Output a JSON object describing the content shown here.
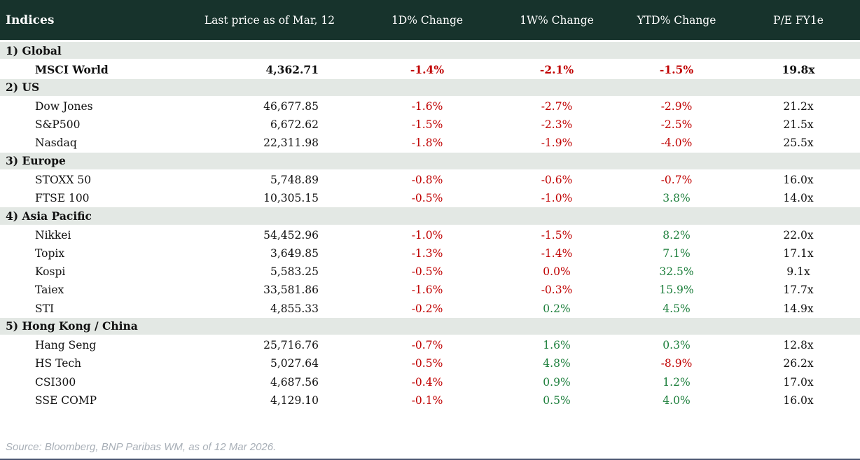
{
  "chart_data": {
    "type": "table",
    "title": "Indices",
    "columns": [
      "Last price as of Mar, 12",
      "1D% Change",
      "1W% Change",
      "YTD% Change",
      "P/E FY1e"
    ],
    "sections": [
      {
        "label": "1) Global",
        "rows": [
          {
            "name": "MSCI World",
            "price": "4,362.71",
            "d1": {
              "v": "-1.4%",
              "c": "neg"
            },
            "w1": {
              "v": "-2.1%",
              "c": "neg"
            },
            "ytd": {
              "v": "-1.5%",
              "c": "neg"
            },
            "pe": "19.8x",
            "emphasis": true
          }
        ]
      },
      {
        "label": "2) US",
        "rows": [
          {
            "name": "Dow Jones",
            "price": "46,677.85",
            "d1": {
              "v": "-1.6%",
              "c": "neg"
            },
            "w1": {
              "v": "-2.7%",
              "c": "neg"
            },
            "ytd": {
              "v": "-2.9%",
              "c": "neg"
            },
            "pe": "21.2x"
          },
          {
            "name": "S&P500",
            "price": "6,672.62",
            "d1": {
              "v": "-1.5%",
              "c": "neg"
            },
            "w1": {
              "v": "-2.3%",
              "c": "neg"
            },
            "ytd": {
              "v": "-2.5%",
              "c": "neg"
            },
            "pe": "21.5x"
          },
          {
            "name": "Nasdaq",
            "price": "22,311.98",
            "d1": {
              "v": "-1.8%",
              "c": "neg"
            },
            "w1": {
              "v": "-1.9%",
              "c": "neg"
            },
            "ytd": {
              "v": "-4.0%",
              "c": "neg"
            },
            "pe": "25.5x"
          }
        ]
      },
      {
        "label": "3) Europe",
        "rows": [
          {
            "name": "STOXX 50",
            "price": "5,748.89",
            "d1": {
              "v": "-0.8%",
              "c": "neg"
            },
            "w1": {
              "v": "-0.6%",
              "c": "neg"
            },
            "ytd": {
              "v": "-0.7%",
              "c": "neg"
            },
            "pe": "16.0x"
          },
          {
            "name": "FTSE 100",
            "price": "10,305.15",
            "d1": {
              "v": "-0.5%",
              "c": "neg"
            },
            "w1": {
              "v": "-1.0%",
              "c": "neg"
            },
            "ytd": {
              "v": "3.8%",
              "c": "pos"
            },
            "pe": "14.0x"
          }
        ]
      },
      {
        "label": "4) Asia Pacific",
        "rows": [
          {
            "name": "Nikkei",
            "price": "54,452.96",
            "d1": {
              "v": "-1.0%",
              "c": "neg"
            },
            "w1": {
              "v": "-1.5%",
              "c": "neg"
            },
            "ytd": {
              "v": "8.2%",
              "c": "pos"
            },
            "pe": "22.0x"
          },
          {
            "name": "Topix",
            "price": "3,649.85",
            "d1": {
              "v": "-1.3%",
              "c": "neg"
            },
            "w1": {
              "v": "-1.4%",
              "c": "neg"
            },
            "ytd": {
              "v": "7.1%",
              "c": "pos"
            },
            "pe": "17.1x"
          },
          {
            "name": "Kospi",
            "price": "5,583.25",
            "d1": {
              "v": "-0.5%",
              "c": "neg"
            },
            "w1": {
              "v": "0.0%",
              "c": "neg"
            },
            "ytd": {
              "v": "32.5%",
              "c": "pos"
            },
            "pe": "9.1x"
          },
          {
            "name": "Taiex",
            "price": "33,581.86",
            "d1": {
              "v": "-1.6%",
              "c": "neg"
            },
            "w1": {
              "v": "-0.3%",
              "c": "neg"
            },
            "ytd": {
              "v": "15.9%",
              "c": "pos"
            },
            "pe": "17.7x"
          },
          {
            "name": "STI",
            "price": "4,855.33",
            "d1": {
              "v": "-0.2%",
              "c": "neg"
            },
            "w1": {
              "v": "0.2%",
              "c": "pos"
            },
            "ytd": {
              "v": "4.5%",
              "c": "pos"
            },
            "pe": "14.9x"
          }
        ]
      },
      {
        "label": "5) Hong Kong / China",
        "rows": [
          {
            "name": "Hang Seng",
            "price": "25,716.76",
            "d1": {
              "v": "-0.7%",
              "c": "neg"
            },
            "w1": {
              "v": "1.6%",
              "c": "pos"
            },
            "ytd": {
              "v": "0.3%",
              "c": "pos"
            },
            "pe": "12.8x"
          },
          {
            "name": "HS Tech",
            "price": "5,027.64",
            "d1": {
              "v": "-0.5%",
              "c": "neg"
            },
            "w1": {
              "v": "4.8%",
              "c": "pos"
            },
            "ytd": {
              "v": "-8.9%",
              "c": "neg"
            },
            "pe": "26.2x"
          },
          {
            "name": "CSI300",
            "price": "4,687.56",
            "d1": {
              "v": "-0.4%",
              "c": "neg"
            },
            "w1": {
              "v": "0.9%",
              "c": "pos"
            },
            "ytd": {
              "v": "1.2%",
              "c": "pos"
            },
            "pe": "17.0x"
          },
          {
            "name": "SSE COMP",
            "price": "4,129.10",
            "d1": {
              "v": "-0.1%",
              "c": "neg"
            },
            "w1": {
              "v": "0.5%",
              "c": "pos"
            },
            "ytd": {
              "v": "4.0%",
              "c": "pos"
            },
            "pe": "16.0x"
          }
        ]
      }
    ],
    "layout": {
      "header_bg": "#17332c",
      "section_bg": "#e3e8e4",
      "negative_color": "#c00000",
      "positive_color": "#1d7f3c",
      "value_alignment": "price right, changes centered"
    }
  },
  "footer": {
    "source": "Source: Bloomberg, BNP Paribas WM, as of 12 Mar 2026."
  }
}
